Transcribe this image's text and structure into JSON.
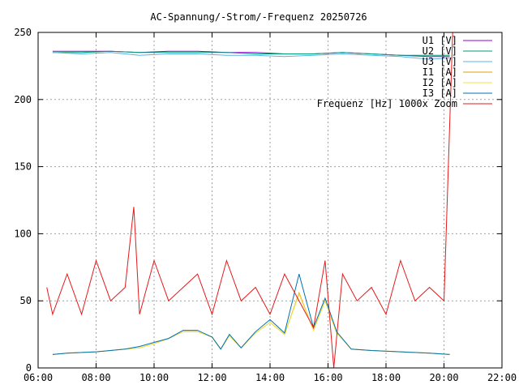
{
  "chart_data": {
    "type": "line",
    "title": "AC-Spannung/-Strom/-Frequenz 20250726",
    "xlabel": "",
    "ylabel": "",
    "x_range": [
      "06:00",
      "22:00"
    ],
    "xlim": [
      6,
      22
    ],
    "ylim": [
      0,
      250
    ],
    "x_ticks": [
      "06:00",
      "08:00",
      "10:00",
      "12:00",
      "14:00",
      "16:00",
      "18:00",
      "20:00",
      "22:00"
    ],
    "y_ticks": [
      "0",
      "50",
      "100",
      "150",
      "200",
      "250"
    ],
    "grid": true,
    "legend_position": "top-right",
    "series": [
      {
        "name": "U1 [V]",
        "color": "#9400d3",
        "x": [
          6.5,
          7.5,
          8.5,
          9.5,
          10.5,
          11.5,
          12.5,
          13.5,
          14.5,
          15.5,
          16.5,
          17.5,
          18.5,
          19.5,
          20.2
        ],
        "values": [
          236,
          236,
          236,
          235,
          236,
          236,
          235,
          235,
          234,
          234,
          235,
          234,
          233,
          232,
          232
        ]
      },
      {
        "name": "U2 [V]",
        "color": "#009e73",
        "x": [
          6.5,
          7.5,
          8.5,
          9.5,
          10.5,
          11.5,
          12.5,
          13.5,
          14.5,
          15.5,
          16.5,
          17.5,
          18.5,
          19.5,
          20.2
        ],
        "values": [
          235,
          235,
          236,
          235,
          235,
          235,
          235,
          234,
          234,
          234,
          235,
          234,
          233,
          233,
          233
        ]
      },
      {
        "name": "U3 [V]",
        "color": "#56b4e9",
        "x": [
          6.5,
          7.5,
          8.5,
          9.5,
          10.5,
          11.5,
          12.5,
          13.5,
          14.5,
          15.5,
          16.5,
          17.5,
          18.5,
          19.5,
          20.2
        ],
        "values": [
          235,
          234,
          235,
          233,
          234,
          234,
          233,
          233,
          232,
          233,
          234,
          233,
          232,
          230,
          231
        ]
      },
      {
        "name": "I1 [A]",
        "color": "#e69f00",
        "x": [
          6.5,
          7.0,
          8.0,
          9.0,
          9.5,
          10.0,
          10.5,
          11.0,
          11.5,
          12.0,
          12.3,
          12.6,
          13.0,
          13.5,
          14.0,
          14.5,
          15.0,
          15.5,
          15.9,
          16.3,
          16.8,
          17.5,
          18.5,
          19.5,
          20.2
        ],
        "values": [
          10,
          11,
          12,
          14,
          15,
          18,
          22,
          27,
          27,
          23,
          14,
          24,
          15,
          26,
          34,
          25,
          56,
          28,
          50,
          26,
          14,
          13,
          12,
          11,
          10
        ]
      },
      {
        "name": "I2 [A]",
        "color": "#f0e442",
        "x": [
          6.5,
          7.0,
          8.0,
          9.0,
          9.5,
          10.0,
          10.5,
          11.0,
          11.5,
          12.0,
          12.3,
          12.6,
          13.0,
          13.5,
          14.0,
          14.5,
          15.0,
          15.5,
          15.9,
          16.3,
          16.8,
          17.5,
          18.5,
          19.5,
          20.2
        ],
        "values": [
          10,
          11,
          12,
          14,
          15,
          18,
          22,
          27,
          27,
          23,
          14,
          24,
          15,
          26,
          34,
          25,
          55,
          28,
          50,
          26,
          14,
          13,
          12,
          11,
          10
        ]
      },
      {
        "name": "I3 [A]",
        "color": "#0072b2",
        "x": [
          6.5,
          7.0,
          8.0,
          9.0,
          9.5,
          10.0,
          10.5,
          11.0,
          11.5,
          12.0,
          12.3,
          12.6,
          13.0,
          13.5,
          14.0,
          14.5,
          15.0,
          15.5,
          15.9,
          16.3,
          16.8,
          17.5,
          18.5,
          19.5,
          20.2
        ],
        "values": [
          10,
          11,
          12,
          14,
          16,
          19,
          22,
          28,
          28,
          23,
          14,
          25,
          15,
          27,
          36,
          26,
          70,
          30,
          52,
          27,
          14,
          13,
          12,
          11,
          10
        ]
      },
      {
        "name": "Frequenz [Hz] 1000x Zoom",
        "color": "#e41a1c",
        "x": [
          6.3,
          6.5,
          7.0,
          7.5,
          8.0,
          8.5,
          9.0,
          9.3,
          9.5,
          10.0,
          10.5,
          11.0,
          11.5,
          12.0,
          12.5,
          13.0,
          13.5,
          14.0,
          14.5,
          15.0,
          15.5,
          15.9,
          16.2,
          16.5,
          17.0,
          17.5,
          18.0,
          18.5,
          19.0,
          19.5,
          20.0,
          20.3
        ],
        "values": [
          60,
          40,
          70,
          40,
          80,
          50,
          60,
          120,
          40,
          80,
          50,
          60,
          70,
          40,
          80,
          50,
          60,
          40,
          70,
          50,
          30,
          80,
          0,
          70,
          50,
          60,
          40,
          80,
          50,
          60,
          50,
          250
        ]
      }
    ]
  }
}
